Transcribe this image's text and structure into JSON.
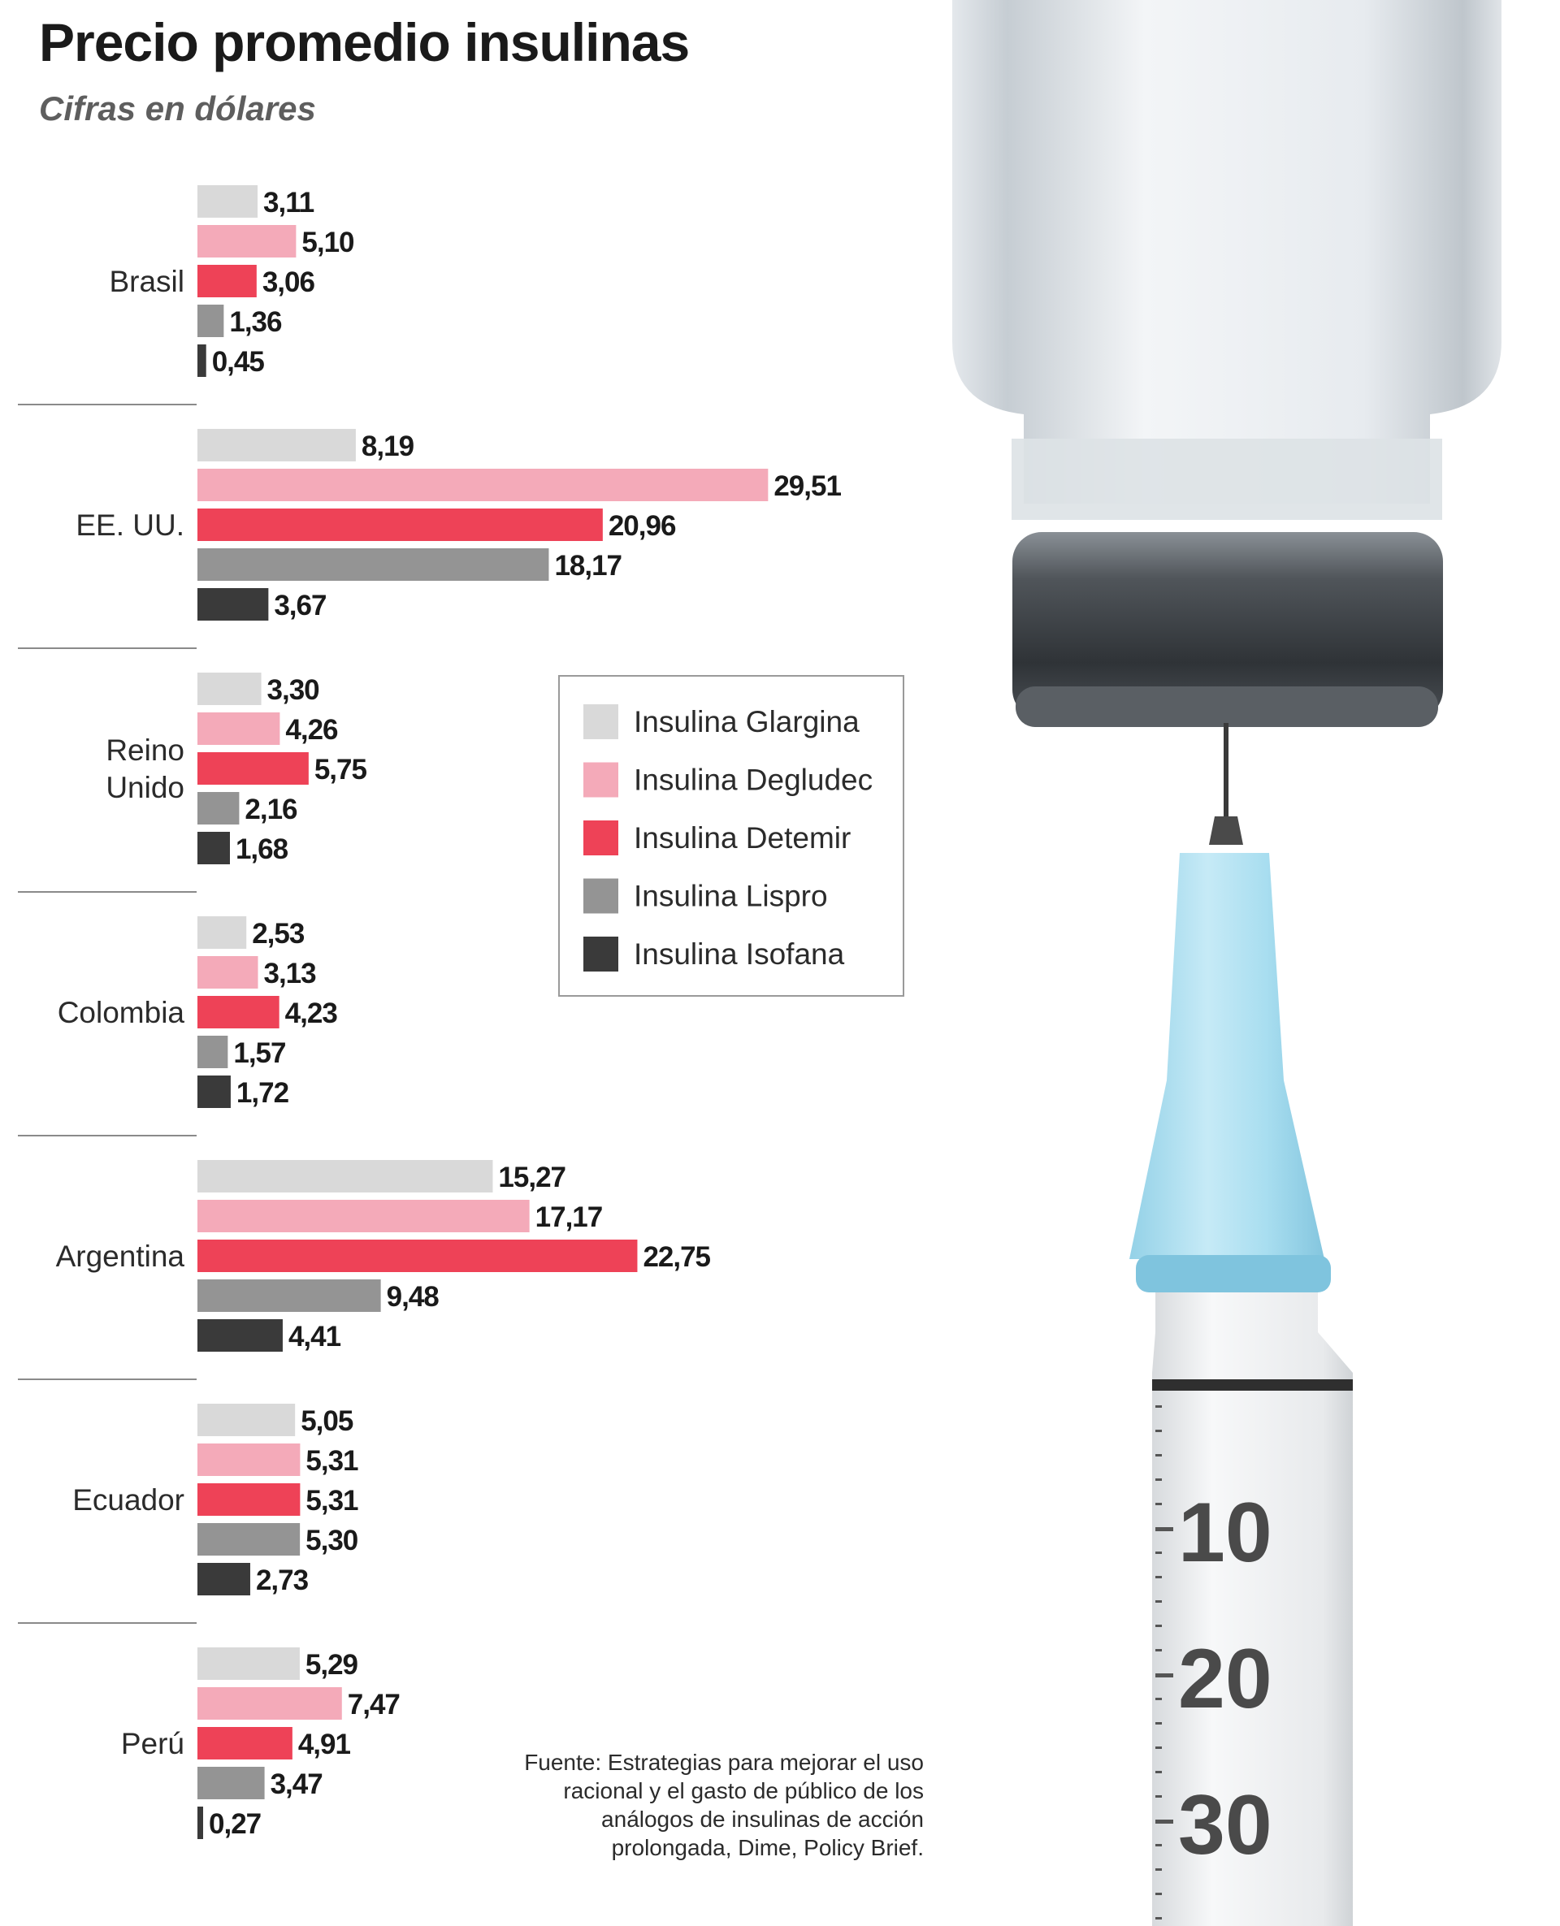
{
  "chart_data": {
    "type": "bar",
    "orientation": "horizontal",
    "title": "Precio promedio insulinas",
    "subtitle": "Cifras en dólares",
    "categories": [
      "Brasil",
      "EE. UU.",
      "Reino Unido",
      "Colombia",
      "Argentina",
      "Ecuador",
      "Perú"
    ],
    "series": [
      {
        "name": "Insulina Glargina",
        "color": "#d9d9d9",
        "values": [
          3.11,
          8.19,
          3.3,
          2.53,
          15.27,
          5.05,
          5.29
        ],
        "labels": [
          "3,11",
          "8,19",
          "3,30",
          "2,53",
          "15,27",
          "5,05",
          "5,29"
        ]
      },
      {
        "name": "Insulina Degludec",
        "color": "#f4aab9",
        "values": [
          5.1,
          29.51,
          4.26,
          3.13,
          17.17,
          5.31,
          7.47
        ],
        "labels": [
          "5,10",
          "29,51",
          "4,26",
          "3,13",
          "17,17",
          "5,31",
          "7,47"
        ]
      },
      {
        "name": "Insulina Detemir",
        "color": "#ee4257",
        "values": [
          3.06,
          20.96,
          5.75,
          4.23,
          22.75,
          5.31,
          4.91
        ],
        "labels": [
          "3,06",
          "20,96",
          "5,75",
          "4,23",
          "22,75",
          "5,31",
          "4,91"
        ]
      },
      {
        "name": "Insulina Lispro",
        "color": "#949494",
        "values": [
          1.36,
          18.17,
          2.16,
          1.57,
          9.48,
          5.3,
          3.47
        ],
        "labels": [
          "1,36",
          "18,17",
          "2,16",
          "1,57",
          "9,48",
          "5,30",
          "3,47"
        ]
      },
      {
        "name": "Insulina Isofana",
        "color": "#3a3a3a",
        "values": [
          0.45,
          3.67,
          1.68,
          1.72,
          4.41,
          2.73,
          0.27
        ],
        "labels": [
          "0,45",
          "3,67",
          "1,68",
          "1,72",
          "4,41",
          "2,73",
          "0,27"
        ]
      }
    ],
    "xlim": [
      0,
      29.51
    ],
    "legend": "center-right",
    "grid": false
  },
  "source": "Fuente: Estrategias para mejorar el uso racional y el gasto de público de los análogos de insulinas de acción prolongada, Dime, Policy Brief.",
  "illustration": "syringe-and-vial",
  "syringe_scale": [
    "10",
    "20",
    "30"
  ]
}
